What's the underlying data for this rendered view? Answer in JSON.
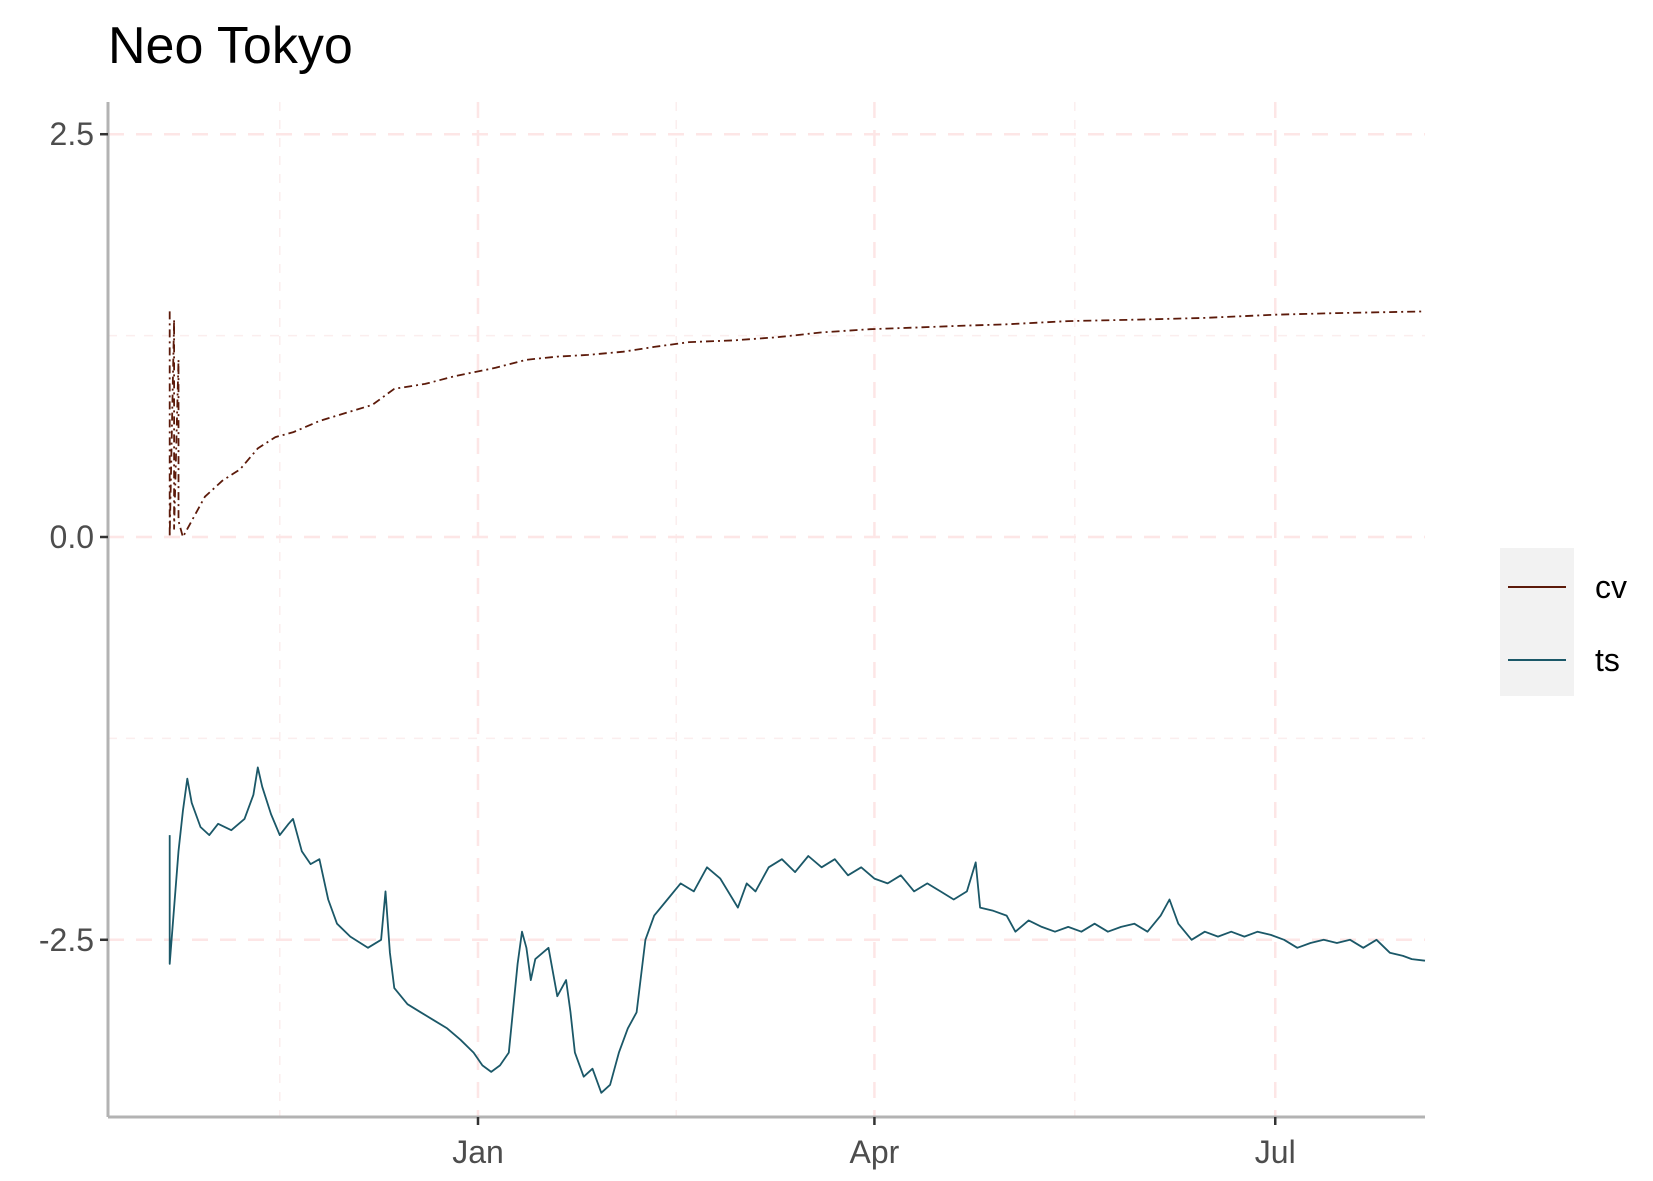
{
  "chart_data": {
    "type": "line",
    "title": "Neo Tokyo",
    "xlabel": "",
    "ylabel": "",
    "x_range": [
      "2018-10-09",
      "2019-08-04"
    ],
    "ylim": [
      -3.6,
      2.7
    ],
    "y_ticks": [
      -2.5,
      0.0,
      2.5
    ],
    "y_tick_labels": [
      "-2.5",
      "0.0",
      "2.5"
    ],
    "x_ticks": [
      "2019-01-01",
      "2019-04-01",
      "2019-07-01"
    ],
    "x_tick_labels": [
      "Jan",
      "Apr",
      "Jul"
    ],
    "grid": true,
    "legend_position": "right",
    "series": [
      {
        "name": "cv",
        "color": "#5c1a0a",
        "line_style": "dashdot",
        "points": [
          [
            "2018-10-23",
            1.4
          ],
          [
            "2018-10-23",
            0.0
          ],
          [
            "2018-10-24",
            1.35
          ],
          [
            "2018-10-24",
            0.05
          ],
          [
            "2018-10-25",
            1.1
          ],
          [
            "2018-10-25",
            0.1
          ],
          [
            "2018-10-26",
            0.0
          ],
          [
            "2018-10-28",
            0.1
          ],
          [
            "2018-10-31",
            0.25
          ],
          [
            "2018-11-04",
            0.35
          ],
          [
            "2018-11-08",
            0.42
          ],
          [
            "2018-11-12",
            0.55
          ],
          [
            "2018-11-16",
            0.62
          ],
          [
            "2018-11-20",
            0.65
          ],
          [
            "2018-11-26",
            0.72
          ],
          [
            "2018-12-02",
            0.77
          ],
          [
            "2018-12-08",
            0.82
          ],
          [
            "2018-12-13",
            0.92
          ],
          [
            "2018-12-20",
            0.95
          ],
          [
            "2018-12-27",
            1.0
          ],
          [
            "2019-01-05",
            1.05
          ],
          [
            "2019-01-12",
            1.1
          ],
          [
            "2019-01-19",
            1.12
          ],
          [
            "2019-01-26",
            1.13
          ],
          [
            "2019-02-03",
            1.15
          ],
          [
            "2019-02-10",
            1.18
          ],
          [
            "2019-02-18",
            1.21
          ],
          [
            "2019-02-28",
            1.22
          ],
          [
            "2019-03-10",
            1.24
          ],
          [
            "2019-03-20",
            1.27
          ],
          [
            "2019-03-31",
            1.29
          ],
          [
            "2019-04-10",
            1.3
          ],
          [
            "2019-04-20",
            1.31
          ],
          [
            "2019-05-01",
            1.32
          ],
          [
            "2019-05-15",
            1.34
          ],
          [
            "2019-06-01",
            1.35
          ],
          [
            "2019-06-15",
            1.36
          ],
          [
            "2019-07-01",
            1.38
          ],
          [
            "2019-07-15",
            1.39
          ],
          [
            "2019-08-04",
            1.4
          ]
        ]
      },
      {
        "name": "ts",
        "color": "#1b5868",
        "line_style": "solid",
        "points": [
          [
            "2018-10-23",
            -1.85
          ],
          [
            "2018-10-23",
            -2.65
          ],
          [
            "2018-10-24",
            -2.3
          ],
          [
            "2018-10-25",
            -1.95
          ],
          [
            "2018-10-26",
            -1.7
          ],
          [
            "2018-10-27",
            -1.5
          ],
          [
            "2018-10-28",
            -1.65
          ],
          [
            "2018-10-30",
            -1.8
          ],
          [
            "2018-11-01",
            -1.85
          ],
          [
            "2018-11-03",
            -1.78
          ],
          [
            "2018-11-06",
            -1.82
          ],
          [
            "2018-11-09",
            -1.75
          ],
          [
            "2018-11-11",
            -1.6
          ],
          [
            "2018-11-12",
            -1.43
          ],
          [
            "2018-11-13",
            -1.55
          ],
          [
            "2018-11-15",
            -1.72
          ],
          [
            "2018-11-17",
            -1.85
          ],
          [
            "2018-11-19",
            -1.78
          ],
          [
            "2018-11-20",
            -1.75
          ],
          [
            "2018-11-22",
            -1.95
          ],
          [
            "2018-11-24",
            -2.03
          ],
          [
            "2018-11-26",
            -2.0
          ],
          [
            "2018-11-28",
            -2.25
          ],
          [
            "2018-11-30",
            -2.4
          ],
          [
            "2018-12-03",
            -2.48
          ],
          [
            "2018-12-07",
            -2.55
          ],
          [
            "2018-12-10",
            -2.5
          ],
          [
            "2018-12-11",
            -2.2
          ],
          [
            "2018-12-12",
            -2.58
          ],
          [
            "2018-12-13",
            -2.8
          ],
          [
            "2018-12-16",
            -2.9
          ],
          [
            "2018-12-19",
            -2.95
          ],
          [
            "2018-12-22",
            -3.0
          ],
          [
            "2018-12-25",
            -3.05
          ],
          [
            "2018-12-28",
            -3.12
          ],
          [
            "2018-12-31",
            -3.2
          ],
          [
            "2019-01-02",
            -3.28
          ],
          [
            "2019-01-04",
            -3.32
          ],
          [
            "2019-01-06",
            -3.28
          ],
          [
            "2019-01-08",
            -3.2
          ],
          [
            "2019-01-10",
            -2.65
          ],
          [
            "2019-01-11",
            -2.45
          ],
          [
            "2019-01-12",
            -2.55
          ],
          [
            "2019-01-13",
            -2.75
          ],
          [
            "2019-01-14",
            -2.62
          ],
          [
            "2019-01-17",
            -2.55
          ],
          [
            "2019-01-19",
            -2.85
          ],
          [
            "2019-01-21",
            -2.75
          ],
          [
            "2019-01-22",
            -2.95
          ],
          [
            "2019-01-23",
            -3.2
          ],
          [
            "2019-01-25",
            -3.35
          ],
          [
            "2019-01-27",
            -3.3
          ],
          [
            "2019-01-29",
            -3.45
          ],
          [
            "2019-01-31",
            -3.4
          ],
          [
            "2019-02-02",
            -3.2
          ],
          [
            "2019-02-04",
            -3.05
          ],
          [
            "2019-02-06",
            -2.95
          ],
          [
            "2019-02-08",
            -2.5
          ],
          [
            "2019-02-10",
            -2.35
          ],
          [
            "2019-02-13",
            -2.25
          ],
          [
            "2019-02-16",
            -2.15
          ],
          [
            "2019-02-19",
            -2.2
          ],
          [
            "2019-02-22",
            -2.05
          ],
          [
            "2019-02-25",
            -2.12
          ],
          [
            "2019-03-01",
            -2.3
          ],
          [
            "2019-03-03",
            -2.15
          ],
          [
            "2019-03-05",
            -2.2
          ],
          [
            "2019-03-08",
            -2.05
          ],
          [
            "2019-03-11",
            -2.0
          ],
          [
            "2019-03-14",
            -2.08
          ],
          [
            "2019-03-17",
            -1.98
          ],
          [
            "2019-03-20",
            -2.05
          ],
          [
            "2019-03-23",
            -2.0
          ],
          [
            "2019-03-26",
            -2.1
          ],
          [
            "2019-03-29",
            -2.05
          ],
          [
            "2019-04-01",
            -2.12
          ],
          [
            "2019-04-04",
            -2.15
          ],
          [
            "2019-04-07",
            -2.1
          ],
          [
            "2019-04-10",
            -2.2
          ],
          [
            "2019-04-13",
            -2.15
          ],
          [
            "2019-04-16",
            -2.2
          ],
          [
            "2019-04-19",
            -2.25
          ],
          [
            "2019-04-22",
            -2.2
          ],
          [
            "2019-04-24",
            -2.02
          ],
          [
            "2019-04-25",
            -2.3
          ],
          [
            "2019-04-28",
            -2.32
          ],
          [
            "2019-05-01",
            -2.35
          ],
          [
            "2019-05-03",
            -2.45
          ],
          [
            "2019-05-06",
            -2.38
          ],
          [
            "2019-05-09",
            -2.42
          ],
          [
            "2019-05-12",
            -2.45
          ],
          [
            "2019-05-15",
            -2.42
          ],
          [
            "2019-05-18",
            -2.45
          ],
          [
            "2019-05-21",
            -2.4
          ],
          [
            "2019-05-24",
            -2.45
          ],
          [
            "2019-05-27",
            -2.42
          ],
          [
            "2019-05-30",
            -2.4
          ],
          [
            "2019-06-02",
            -2.45
          ],
          [
            "2019-06-05",
            -2.35
          ],
          [
            "2019-06-07",
            -2.25
          ],
          [
            "2019-06-09",
            -2.4
          ],
          [
            "2019-06-12",
            -2.5
          ],
          [
            "2019-06-15",
            -2.45
          ],
          [
            "2019-06-18",
            -2.48
          ],
          [
            "2019-06-21",
            -2.45
          ],
          [
            "2019-06-24",
            -2.48
          ],
          [
            "2019-06-27",
            -2.45
          ],
          [
            "2019-06-30",
            -2.47
          ],
          [
            "2019-07-03",
            -2.5
          ],
          [
            "2019-07-06",
            -2.55
          ],
          [
            "2019-07-09",
            -2.52
          ],
          [
            "2019-07-12",
            -2.5
          ],
          [
            "2019-07-15",
            -2.52
          ],
          [
            "2019-07-18",
            -2.5
          ],
          [
            "2019-07-21",
            -2.55
          ],
          [
            "2019-07-24",
            -2.5
          ],
          [
            "2019-07-27",
            -2.58
          ],
          [
            "2019-07-30",
            -2.6
          ],
          [
            "2019-08-01",
            -2.62
          ],
          [
            "2019-08-04",
            -2.63
          ]
        ]
      }
    ]
  }
}
